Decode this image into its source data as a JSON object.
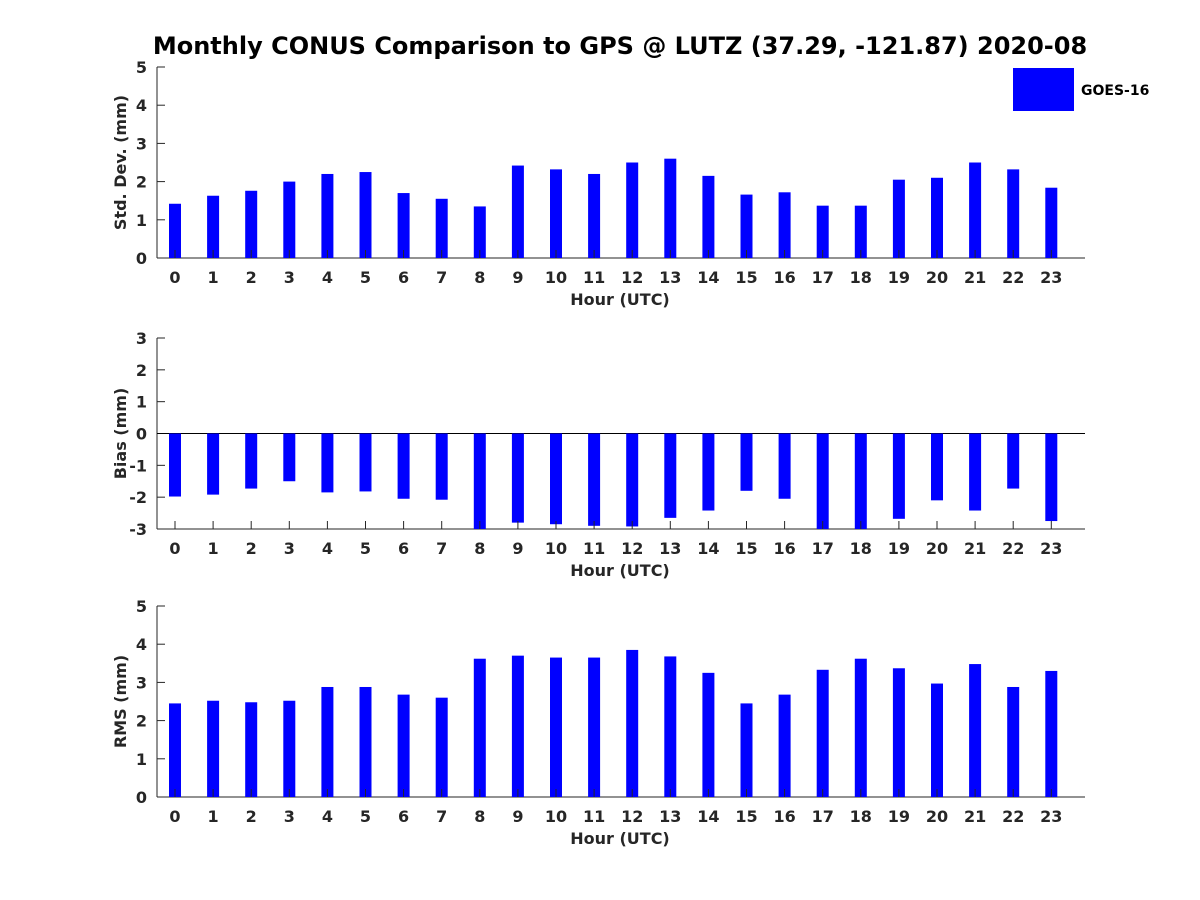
{
  "title": "Monthly CONUS Comparison to GPS @ LUTZ (37.29, -121.87) 2020-08",
  "legend": {
    "label": "GOES-16",
    "color": "#0000ff"
  },
  "chart_data": [
    {
      "type": "bar",
      "xlabel": "Hour (UTC)",
      "ylabel": "Std. Dev. (mm)",
      "ylim": [
        0,
        5
      ],
      "yticks": [
        0,
        1,
        2,
        3,
        4,
        5
      ],
      "categories": [
        "0",
        "1",
        "2",
        "3",
        "4",
        "5",
        "6",
        "7",
        "8",
        "9",
        "10",
        "11",
        "12",
        "13",
        "14",
        "15",
        "16",
        "17",
        "18",
        "19",
        "20",
        "21",
        "22",
        "23"
      ],
      "series": [
        {
          "name": "GOES-16",
          "color": "#0000ff",
          "values": [
            1.42,
            1.63,
            1.76,
            2.0,
            2.2,
            2.25,
            1.7,
            1.55,
            1.35,
            2.42,
            2.32,
            2.2,
            2.5,
            2.6,
            2.15,
            1.66,
            1.72,
            1.37,
            1.37,
            2.05,
            2.1,
            2.5,
            2.32,
            1.84
          ]
        }
      ]
    },
    {
      "type": "bar",
      "xlabel": "Hour (UTC)",
      "ylabel": "Bias (mm)",
      "ylim": [
        -3,
        3
      ],
      "yticks": [
        -3,
        -2,
        -1,
        0,
        1,
        2,
        3
      ],
      "categories": [
        "0",
        "1",
        "2",
        "3",
        "4",
        "5",
        "6",
        "7",
        "8",
        "9",
        "10",
        "11",
        "12",
        "13",
        "14",
        "15",
        "16",
        "17",
        "18",
        "19",
        "20",
        "21",
        "22",
        "23"
      ],
      "series": [
        {
          "name": "GOES-16",
          "color": "#0000ff",
          "values": [
            -1.98,
            -1.92,
            -1.73,
            -1.5,
            -1.85,
            -1.82,
            -2.05,
            -2.08,
            -3.0,
            -2.8,
            -2.85,
            -2.9,
            -2.92,
            -2.65,
            -2.42,
            -1.8,
            -2.05,
            -3.0,
            -3.0,
            -2.68,
            -2.1,
            -2.42,
            -1.73,
            -2.75
          ]
        }
      ]
    },
    {
      "type": "bar",
      "xlabel": "Hour (UTC)",
      "ylabel": "RMS (mm)",
      "ylim": [
        0,
        5
      ],
      "yticks": [
        0,
        1,
        2,
        3,
        4,
        5
      ],
      "categories": [
        "0",
        "1",
        "2",
        "3",
        "4",
        "5",
        "6",
        "7",
        "8",
        "9",
        "10",
        "11",
        "12",
        "13",
        "14",
        "15",
        "16",
        "17",
        "18",
        "19",
        "20",
        "21",
        "22",
        "23"
      ],
      "series": [
        {
          "name": "GOES-16",
          "color": "#0000ff",
          "values": [
            2.45,
            2.52,
            2.48,
            2.52,
            2.88,
            2.88,
            2.68,
            2.6,
            3.62,
            3.7,
            3.65,
            3.65,
            3.85,
            3.68,
            3.25,
            2.45,
            2.68,
            3.33,
            3.62,
            3.37,
            2.97,
            3.48,
            2.88,
            3.3
          ]
        }
      ]
    }
  ]
}
